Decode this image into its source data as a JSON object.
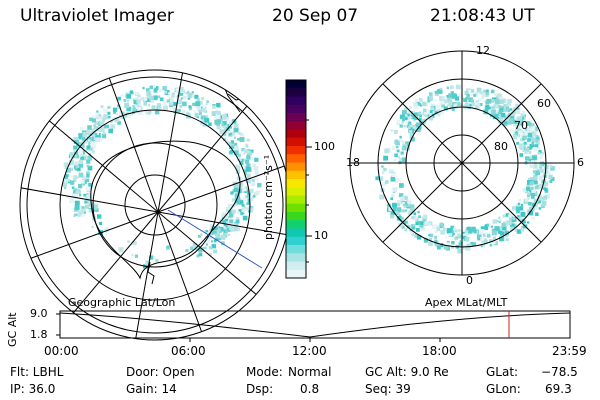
{
  "header": {
    "instrument": "Ultraviolet Imager",
    "date": "20 Sep 07",
    "time": "21:08:43 UT"
  },
  "left_map": {
    "label": "Geographic Lat/Lon"
  },
  "right_map": {
    "label": "Apex MLat/MLT",
    "mlt_labels": [
      "12",
      "18",
      "6",
      "0"
    ],
    "mlat_labels": [
      "60",
      "70",
      "80"
    ]
  },
  "colorbar": {
    "unit_label": "photon cm⁻²s⁻¹",
    "ticks": [
      "100",
      "10"
    ],
    "colors": [
      "#000033",
      "#1a0040",
      "#300060",
      "#4a0060",
      "#6a0050",
      "#900030",
      "#b00010",
      "#d01000",
      "#f03000",
      "#ff6000",
      "#ff9000",
      "#ffc000",
      "#f8e800",
      "#d8f000",
      "#a8ec00",
      "#70e000",
      "#38d820",
      "#10d070",
      "#10c8b0",
      "#30d0d0",
      "#70dcdc",
      "#a8e4e4",
      "#d0eef0",
      "#e8f6f8"
    ]
  },
  "timeline": {
    "y_axis_label": "GC Alt",
    "y_ticks": [
      "9.0",
      "1.8"
    ],
    "x_ticks": [
      "00:00",
      "06:00",
      "12:00",
      "18:00",
      "23:59"
    ],
    "marker_color": "#cc2222"
  },
  "footer": {
    "col1": [
      "Flt: LBHL",
      "IP: 36.0"
    ],
    "col2": [
      "Door: Open",
      "Gain: 14"
    ],
    "col3_labels": [
      "Mode:",
      "Dsp:"
    ],
    "col3_values": [
      "Normal",
      "0.8"
    ],
    "col4": [
      "GC Alt: 9.0 Re",
      "Seq: 39"
    ],
    "col5_labels": [
      "GLat:",
      "GLon:"
    ],
    "col5_values": [
      "−78.5",
      "69.3"
    ]
  }
}
